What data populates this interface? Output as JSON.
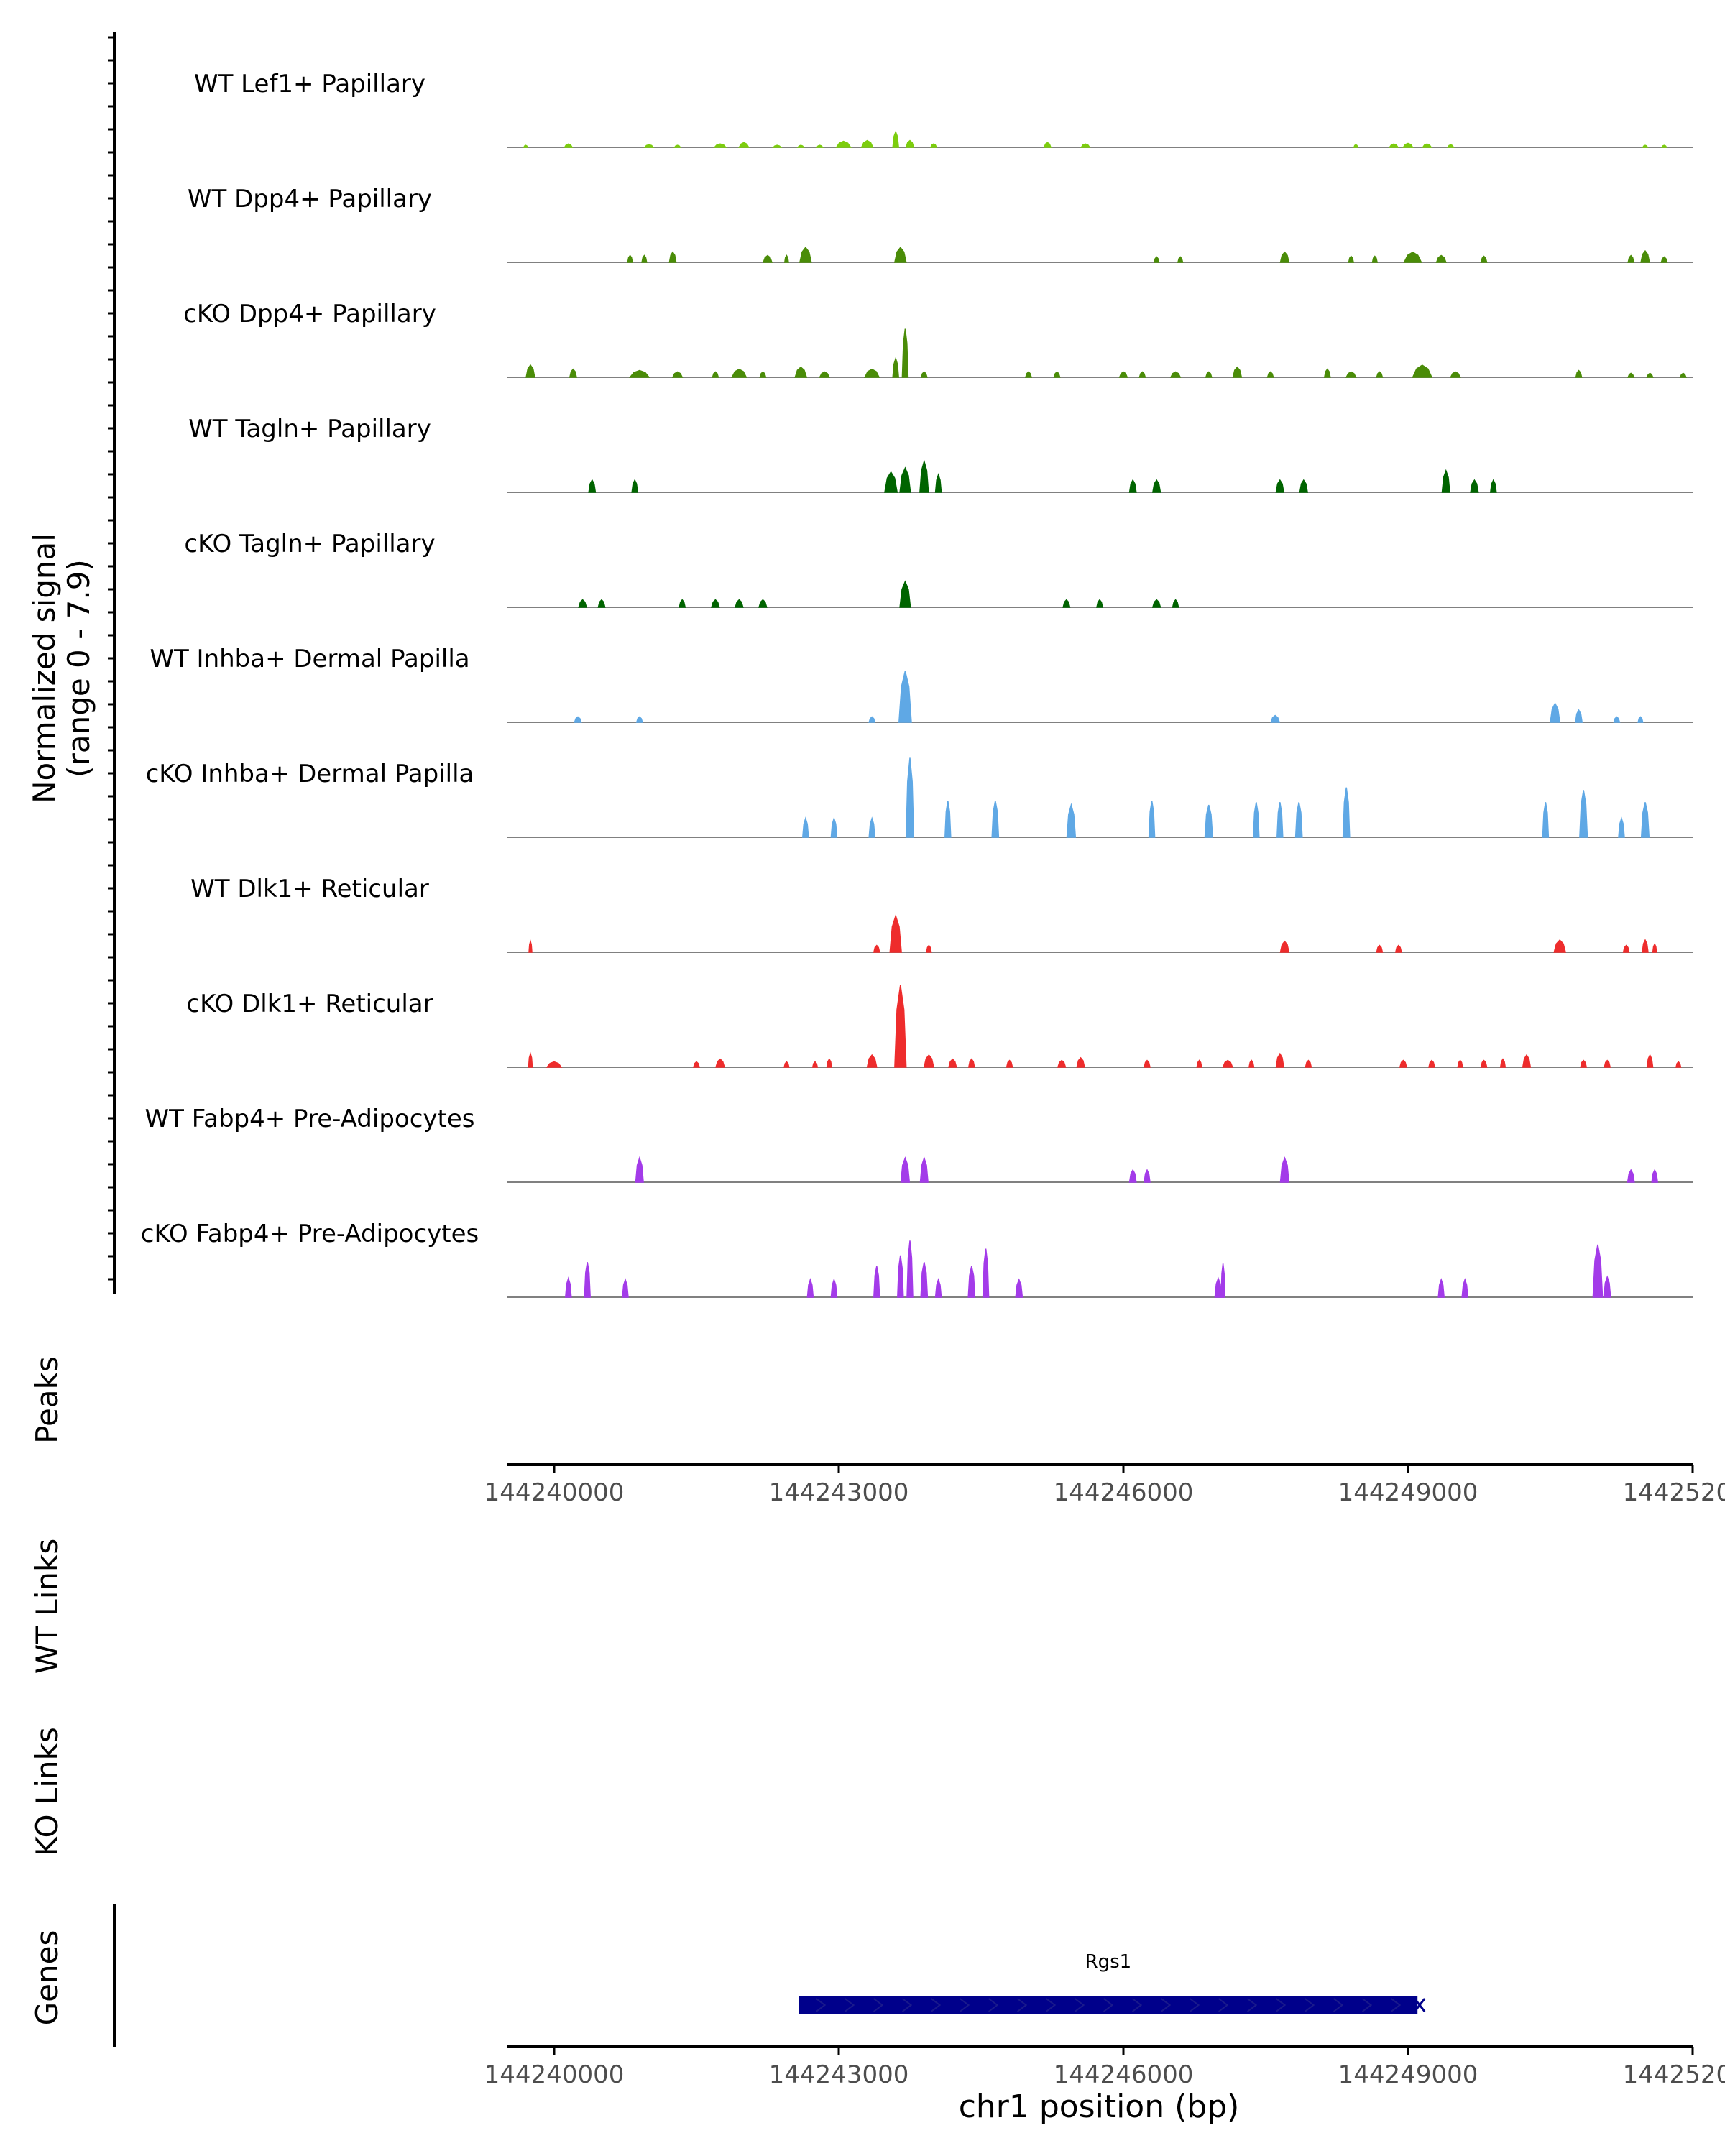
{
  "chart_data": {
    "type": "area",
    "title": "",
    "chromosome": "chr1",
    "xlabel": "chr1 position (bp)",
    "xlim": [
      144239500,
      144252000
    ],
    "xticks": [
      144240000,
      144243000,
      144246000,
      144249000,
      144252000
    ],
    "xtick_labels": [
      "144240000",
      "144243000",
      "144246000",
      "144249000",
      "144252000"
    ],
    "ylim": [
      0,
      7.9
    ],
    "coverage_ylabel": "Normalized signal",
    "coverage_ylabel_range": "(range 0 - 7.9)",
    "panel_labels": {
      "peaks": "Peaks",
      "wt_links": "WT Links",
      "ko_links": "KO Links",
      "genes": "Genes"
    },
    "series": [
      {
        "name": "WT Lef1+ Papillary",
        "color": "#7CCD0E",
        "peaks": [
          [
            144239700,
            40,
            0.15
          ],
          [
            144240150,
            80,
            0.25
          ],
          [
            144241000,
            90,
            0.2
          ],
          [
            144241300,
            60,
            0.15
          ],
          [
            144241750,
            120,
            0.25
          ],
          [
            144242000,
            100,
            0.35
          ],
          [
            144242350,
            80,
            0.15
          ],
          [
            144242600,
            60,
            0.15
          ],
          [
            144242800,
            60,
            0.15
          ],
          [
            144243050,
            150,
            0.45
          ],
          [
            144243300,
            120,
            0.5
          ],
          [
            144243600,
            60,
            1.15
          ],
          [
            144243750,
            80,
            0.5
          ],
          [
            144244000,
            60,
            0.25
          ],
          [
            144245200,
            70,
            0.35
          ],
          [
            144245600,
            90,
            0.25
          ],
          [
            144248450,
            40,
            0.2
          ],
          [
            144248850,
            90,
            0.25
          ],
          [
            144249000,
            100,
            0.3
          ],
          [
            144249200,
            90,
            0.25
          ],
          [
            144249450,
            60,
            0.2
          ],
          [
            144251500,
            50,
            0.15
          ],
          [
            144251700,
            50,
            0.15
          ]
        ]
      },
      {
        "name": "WT Dpp4+ Papillary",
        "color": "#4A8C08",
        "peaks": [
          [
            144240800,
            50,
            0.5
          ],
          [
            144240950,
            50,
            0.5
          ],
          [
            144241250,
            70,
            0.75
          ],
          [
            144242250,
            90,
            0.5
          ],
          [
            144242450,
            40,
            0.5
          ],
          [
            144242650,
            120,
            1.1
          ],
          [
            144243650,
            120,
            1.1
          ],
          [
            144246350,
            50,
            0.4
          ],
          [
            144246600,
            50,
            0.4
          ],
          [
            144247700,
            90,
            0.75
          ],
          [
            144248400,
            50,
            0.45
          ],
          [
            144248650,
            50,
            0.45
          ],
          [
            144249050,
            180,
            0.75
          ],
          [
            144249350,
            100,
            0.5
          ],
          [
            144249800,
            60,
            0.45
          ],
          [
            144251350,
            60,
            0.5
          ],
          [
            144251500,
            90,
            0.85
          ],
          [
            144251700,
            60,
            0.4
          ]
        ]
      },
      {
        "name": "cKO Dpp4+ Papillary",
        "color": "#4A8C08",
        "peaks": [
          [
            144239750,
            90,
            0.9
          ],
          [
            144240200,
            70,
            0.6
          ],
          [
            144240900,
            200,
            0.5
          ],
          [
            144241300,
            100,
            0.4
          ],
          [
            144241700,
            60,
            0.4
          ],
          [
            144241950,
            150,
            0.6
          ],
          [
            144242200,
            60,
            0.4
          ],
          [
            144242600,
            120,
            0.75
          ],
          [
            144242850,
            100,
            0.4
          ],
          [
            144243350,
            150,
            0.6
          ],
          [
            144243600,
            60,
            1.4
          ],
          [
            144243700,
            60,
            3.6
          ],
          [
            144243900,
            60,
            0.4
          ],
          [
            144245000,
            60,
            0.4
          ],
          [
            144245300,
            60,
            0.4
          ],
          [
            144246000,
            80,
            0.4
          ],
          [
            144246200,
            60,
            0.4
          ],
          [
            144246550,
            100,
            0.4
          ],
          [
            144246900,
            60,
            0.4
          ],
          [
            144247200,
            90,
            0.75
          ],
          [
            144247550,
            60,
            0.4
          ],
          [
            144248150,
            60,
            0.6
          ],
          [
            144248400,
            100,
            0.4
          ],
          [
            144248700,
            60,
            0.4
          ],
          [
            144249150,
            200,
            0.9
          ],
          [
            144249500,
            100,
            0.4
          ],
          [
            144250800,
            60,
            0.5
          ],
          [
            144251350,
            60,
            0.3
          ],
          [
            144251550,
            60,
            0.3
          ],
          [
            144251900,
            60,
            0.3
          ]
        ]
      },
      {
        "name": "WT Tagln+ Papillary",
        "color": "#006400",
        "peaks": [
          [
            144240400,
            70,
            0.9
          ],
          [
            144240850,
            60,
            0.9
          ],
          [
            144243550,
            130,
            1.5
          ],
          [
            144243700,
            110,
            1.8
          ],
          [
            144243900,
            90,
            2.3
          ],
          [
            144244050,
            60,
            1.3
          ],
          [
            144246100,
            70,
            0.9
          ],
          [
            144246350,
            80,
            0.9
          ],
          [
            144247650,
            80,
            0.9
          ],
          [
            144247900,
            80,
            0.9
          ],
          [
            144249400,
            80,
            1.6
          ],
          [
            144249700,
            80,
            0.9
          ],
          [
            144249900,
            60,
            0.9
          ]
        ]
      },
      {
        "name": "cKO Tagln+ Papillary",
        "color": "#006400",
        "peaks": [
          [
            144240300,
            80,
            0.55
          ],
          [
            144240500,
            70,
            0.55
          ],
          [
            144241350,
            60,
            0.55
          ],
          [
            144241700,
            80,
            0.55
          ],
          [
            144241950,
            80,
            0.55
          ],
          [
            144242200,
            80,
            0.55
          ],
          [
            144243700,
            110,
            1.9
          ],
          [
            144245400,
            70,
            0.55
          ],
          [
            144245750,
            60,
            0.55
          ],
          [
            144246350,
            80,
            0.55
          ],
          [
            144246550,
            60,
            0.55
          ]
        ]
      },
      {
        "name": "WT Inhba+ Dermal Papilla",
        "color": "#5FA8E5",
        "peaks": [
          [
            144240250,
            70,
            0.4
          ],
          [
            144240900,
            60,
            0.4
          ],
          [
            144243350,
            60,
            0.4
          ],
          [
            144243700,
            130,
            3.8
          ],
          [
            144247600,
            90,
            0.5
          ],
          [
            144250550,
            100,
            1.4
          ],
          [
            144250800,
            70,
            0.9
          ],
          [
            144251200,
            60,
            0.4
          ],
          [
            144251450,
            50,
            0.4
          ]
        ]
      },
      {
        "name": "cKO Inhba+ Dermal Papilla",
        "color": "#5FA8E5",
        "peaks": [
          [
            144242650,
            60,
            1.4
          ],
          [
            144242950,
            60,
            1.4
          ],
          [
            144243350,
            60,
            1.4
          ],
          [
            144243750,
            80,
            5.9
          ],
          [
            144244150,
            60,
            2.7
          ],
          [
            144244650,
            70,
            2.7
          ],
          [
            144245450,
            90,
            2.4
          ],
          [
            144246300,
            60,
            2.7
          ],
          [
            144246900,
            80,
            2.4
          ],
          [
            144247400,
            60,
            2.6
          ],
          [
            144247650,
            60,
            2.6
          ],
          [
            144247850,
            70,
            2.6
          ],
          [
            144248350,
            70,
            3.7
          ],
          [
            144250450,
            60,
            2.6
          ],
          [
            144250850,
            80,
            3.5
          ],
          [
            144251250,
            60,
            1.4
          ],
          [
            144251500,
            80,
            2.6
          ]
        ]
      },
      {
        "name": "WT Dlk1+ Reticular",
        "color": "#EE2C2C",
        "peaks": [
          [
            144239750,
            30,
            0.8
          ],
          [
            144243400,
            60,
            0.5
          ],
          [
            144243600,
            120,
            2.7
          ],
          [
            144243950,
            50,
            0.5
          ],
          [
            144247700,
            90,
            0.8
          ],
          [
            144248700,
            60,
            0.5
          ],
          [
            144248900,
            60,
            0.5
          ],
          [
            144250600,
            120,
            0.9
          ],
          [
            144251300,
            60,
            0.5
          ],
          [
            144251500,
            60,
            0.9
          ],
          [
            144251600,
            40,
            0.6
          ]
        ]
      },
      {
        "name": "cKO Dlk1+ Reticular",
        "color": "#EE2C2C",
        "peaks": [
          [
            144239750,
            40,
            1.0
          ],
          [
            144240000,
            150,
            0.4
          ],
          [
            144241500,
            60,
            0.4
          ],
          [
            144241750,
            90,
            0.6
          ],
          [
            144242450,
            50,
            0.4
          ],
          [
            144242750,
            50,
            0.4
          ],
          [
            144242900,
            50,
            0.6
          ],
          [
            144243350,
            100,
            0.9
          ],
          [
            144243650,
            120,
            6.1
          ],
          [
            144243950,
            100,
            0.9
          ],
          [
            144244200,
            80,
            0.6
          ],
          [
            144244400,
            60,
            0.6
          ],
          [
            144244800,
            60,
            0.5
          ],
          [
            144245350,
            80,
            0.5
          ],
          [
            144245550,
            80,
            0.7
          ],
          [
            144246250,
            60,
            0.5
          ],
          [
            144246800,
            50,
            0.5
          ],
          [
            144247100,
            100,
            0.5
          ],
          [
            144247350,
            50,
            0.5
          ],
          [
            144247650,
            80,
            1.0
          ],
          [
            144247950,
            60,
            0.5
          ],
          [
            144248950,
            70,
            0.5
          ],
          [
            144249250,
            60,
            0.5
          ],
          [
            144249550,
            50,
            0.5
          ],
          [
            144249800,
            60,
            0.5
          ],
          [
            144250000,
            50,
            0.6
          ],
          [
            144250250,
            80,
            0.9
          ],
          [
            144250850,
            60,
            0.5
          ],
          [
            144251100,
            60,
            0.5
          ],
          [
            144251550,
            60,
            0.9
          ],
          [
            144251850,
            50,
            0.4
          ]
        ]
      },
      {
        "name": "WT Fabp4+ Pre-Adipocytes",
        "color": "#A33BE9",
        "peaks": [
          [
            144240900,
            80,
            1.8
          ],
          [
            144243700,
            90,
            1.8
          ],
          [
            144243900,
            80,
            1.8
          ],
          [
            144246100,
            70,
            0.9
          ],
          [
            144246250,
            60,
            0.9
          ],
          [
            144247700,
            90,
            1.8
          ],
          [
            144251350,
            70,
            0.9
          ],
          [
            144251600,
            60,
            0.9
          ]
        ]
      },
      {
        "name": "cKO Fabp4+ Pre-Adipocytes",
        "color": "#A33BE9",
        "peaks": [
          [
            144240150,
            60,
            1.4
          ],
          [
            144240350,
            60,
            2.6
          ],
          [
            144240750,
            60,
            1.3
          ],
          [
            144242700,
            60,
            1.3
          ],
          [
            144242950,
            60,
            1.3
          ],
          [
            144243400,
            60,
            2.3
          ],
          [
            144243650,
            60,
            3.1
          ],
          [
            144243750,
            60,
            4.2
          ],
          [
            144243900,
            70,
            2.6
          ],
          [
            144244050,
            60,
            1.3
          ],
          [
            144244400,
            70,
            2.3
          ],
          [
            144244550,
            60,
            3.6
          ],
          [
            144244900,
            70,
            1.3
          ],
          [
            144247000,
            70,
            1.4
          ],
          [
            144247050,
            40,
            2.5
          ],
          [
            144249350,
            60,
            1.3
          ],
          [
            144249600,
            60,
            1.3
          ],
          [
            144251000,
            100,
            3.9
          ],
          [
            144251100,
            70,
            1.5
          ]
        ]
      }
    ],
    "gene": {
      "name": "Rgs1",
      "start": 144242580,
      "end": 144249100,
      "strand": "-",
      "color": "#00008B"
    }
  }
}
